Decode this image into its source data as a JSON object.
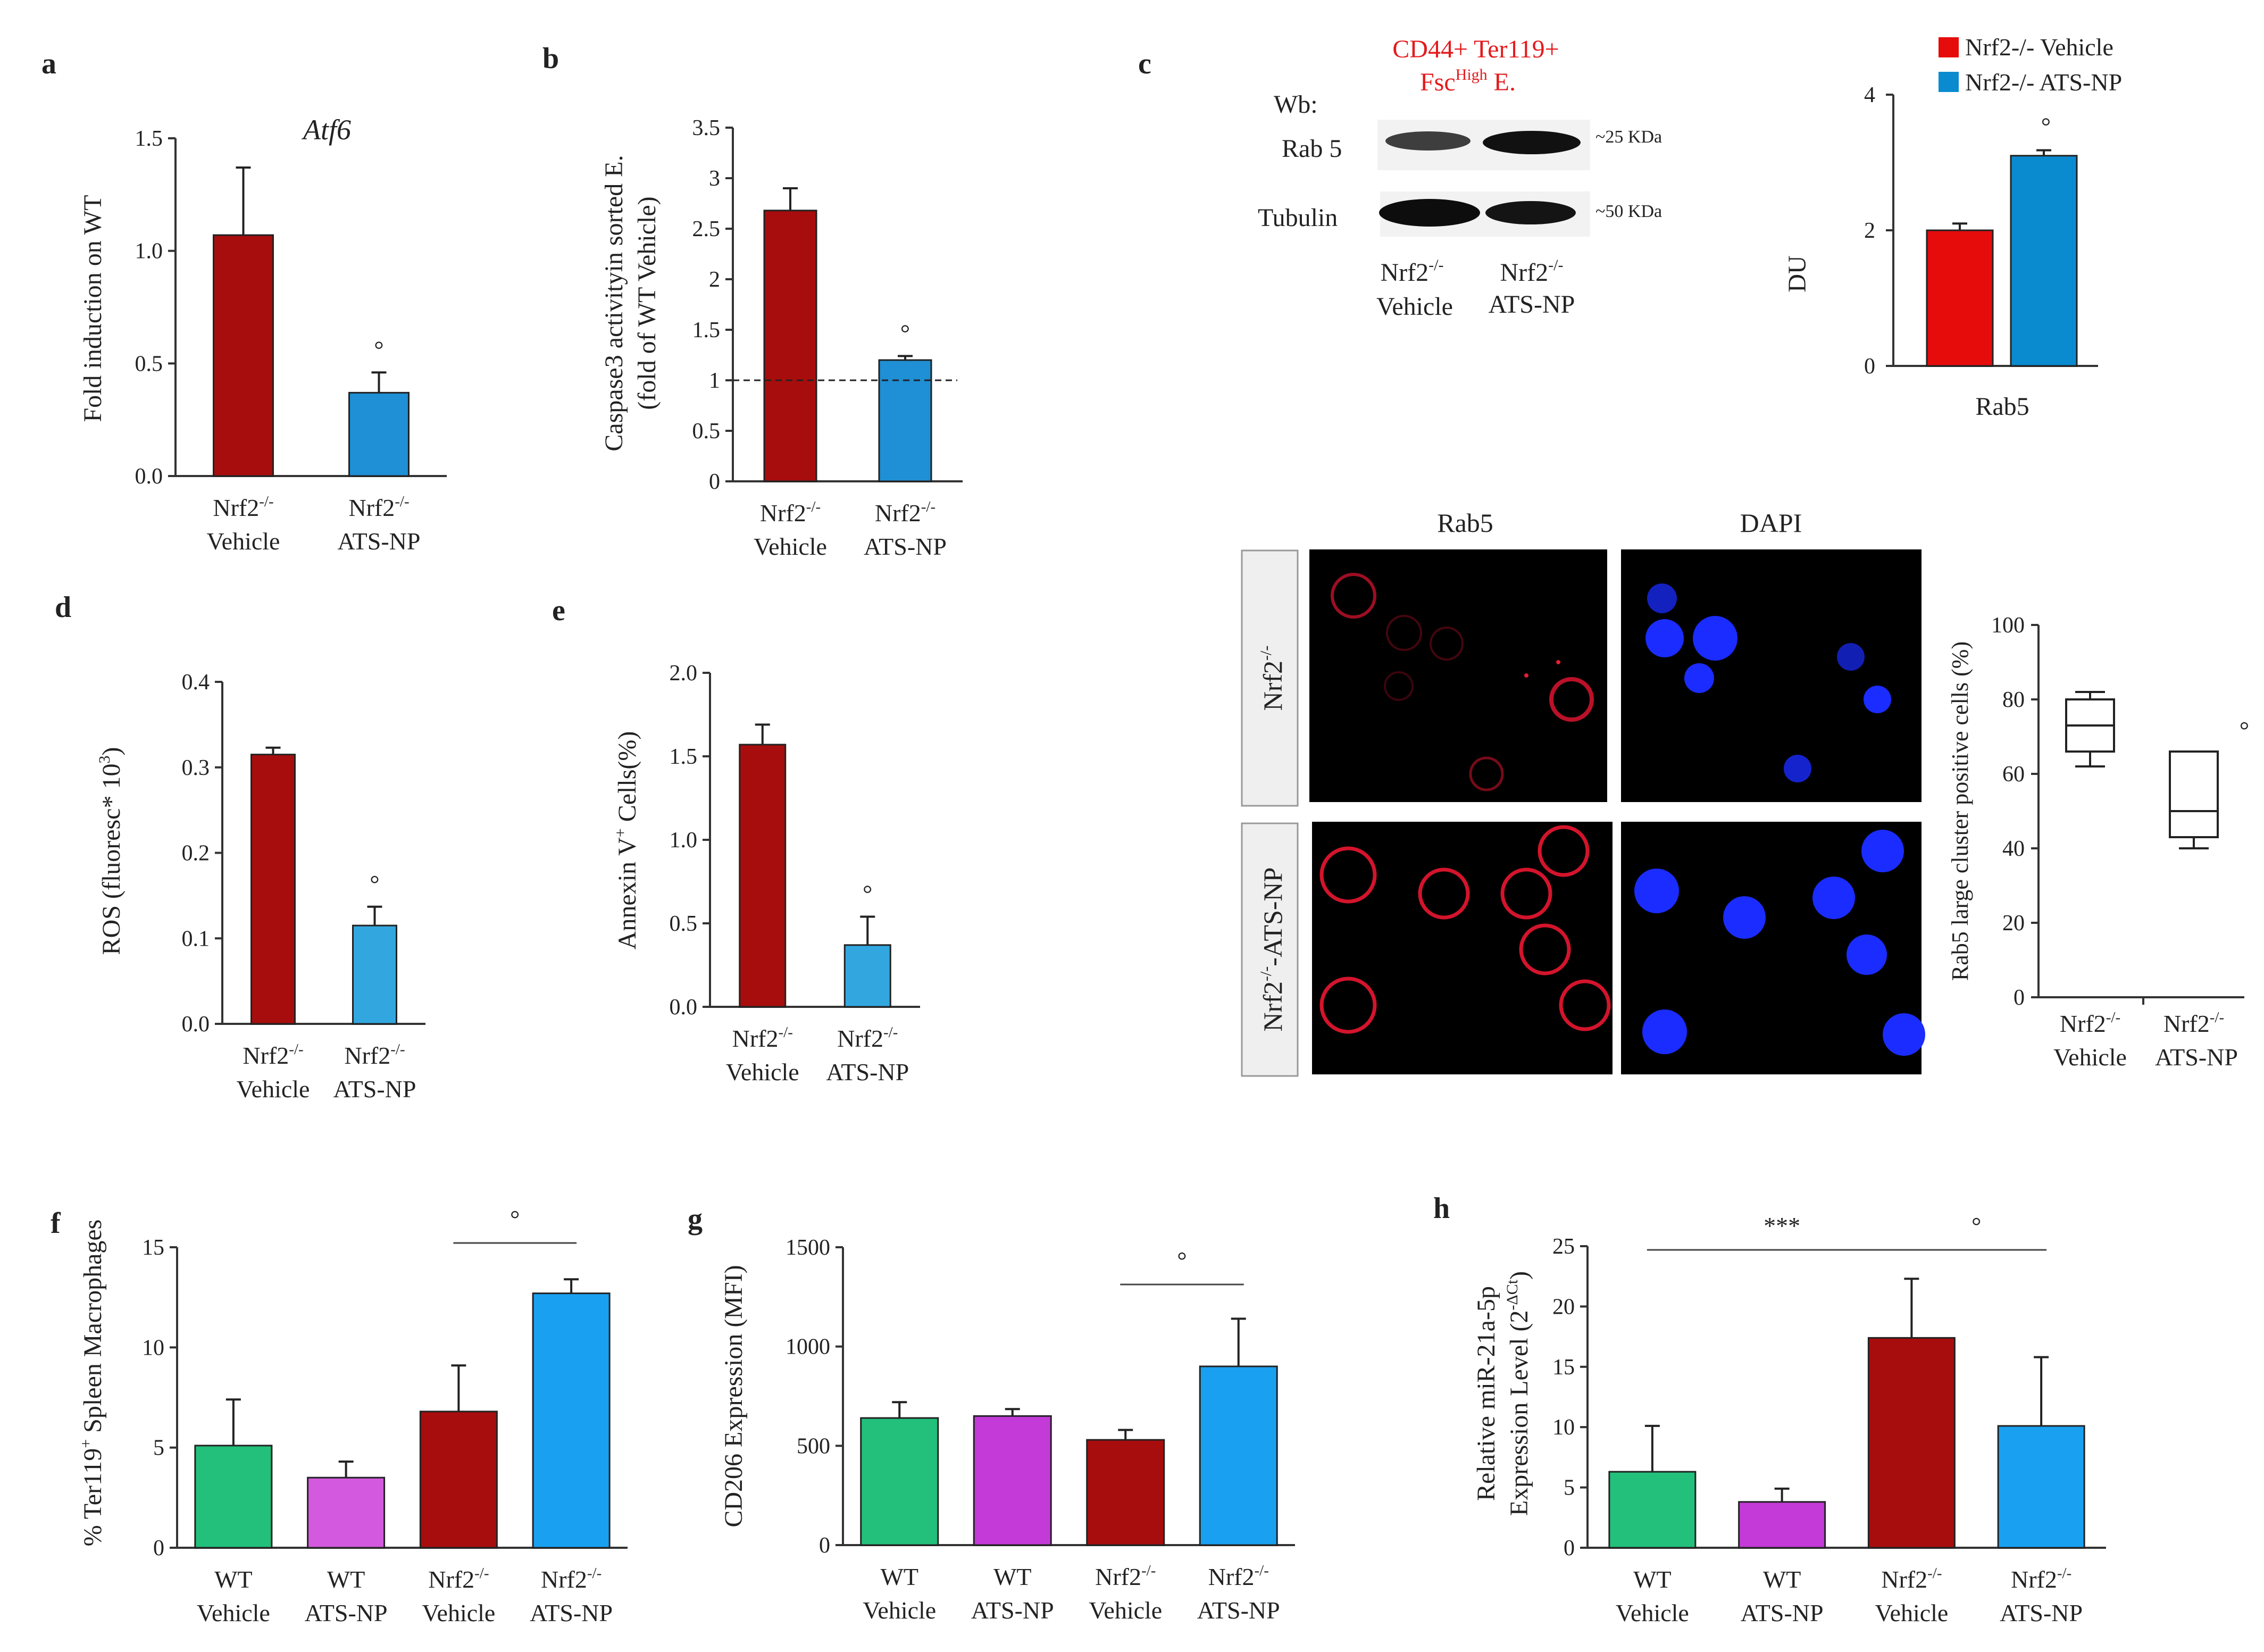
{
  "colors": {
    "dark_red": "#a80d0d",
    "blue": "#1f8fd6",
    "light_blue": "#32a7df",
    "green": "#22c07a",
    "magenta": "#c33ad8",
    "bright_red": "#e60c0c",
    "sky": "#1aa0f0",
    "accent_text": "#e41a1c"
  },
  "chart_data": [
    {
      "panel": "a",
      "type": "bar",
      "title": "Atf6",
      "ylabel": "Fold  induction on WT",
      "ylim": [
        0,
        1.5
      ],
      "yticks": [
        "0.0",
        "0.5",
        "1.0",
        "1.5"
      ],
      "categories": [
        {
          "line1": "Nrf2",
          "sup": "-/-",
          "line2": "Vehicle"
        },
        {
          "line1": "Nrf2",
          "sup": "-/-",
          "line2": "ATS-NP"
        }
      ],
      "values": [
        1.07,
        0.37
      ],
      "errors": [
        0.3,
        0.09
      ],
      "significance": [
        "",
        "°"
      ]
    },
    {
      "panel": "b",
      "type": "bar",
      "ylabel_line1": "Caspase3 activityin sorted E.",
      "ylabel_line2": "(fold of WT Vehicle)",
      "ylim": [
        0,
        3.5
      ],
      "yticks": [
        "0",
        "0.5",
        "1",
        "1.5",
        "2",
        "2.5",
        "3",
        "3.5"
      ],
      "reference_line": 1,
      "categories": [
        {
          "line1": "Nrf2",
          "sup": "-/-",
          "line2": "Vehicle"
        },
        {
          "line1": "Nrf2",
          "sup": "-/-",
          "line2": "ATS-NP"
        }
      ],
      "values": [
        2.68,
        1.2
      ],
      "errors": [
        0.22,
        0.04
      ],
      "significance": [
        "",
        "°"
      ]
    },
    {
      "panel": "c-bar",
      "type": "bar",
      "ylabel": "DU",
      "ylim": [
        0,
        4
      ],
      "yticks": [
        "0",
        "2",
        "4"
      ],
      "xlabel": "Rab5",
      "series": [
        {
          "name": "Nrf2-/- Vehicle",
          "values": [
            2.0
          ],
          "errors": [
            0.1
          ]
        },
        {
          "name": "Nrf2-/- ATS-NP",
          "values": [
            3.1
          ],
          "errors": [
            0.08
          ]
        }
      ],
      "significance": [
        "",
        "°"
      ]
    },
    {
      "panel": "c-box",
      "type": "box",
      "ylabel": "Rab5 large cluster positive cells (%)",
      "ylim": [
        0,
        100
      ],
      "yticks": [
        "0",
        "20",
        "40",
        "60",
        "80",
        "100"
      ],
      "categories": [
        {
          "line1": "Nrf2",
          "sup": "-/-",
          "line2": "Vehicle"
        },
        {
          "line1": "Nrf2",
          "sup": "-/-",
          "line2": "ATS-NP"
        }
      ],
      "boxes": [
        {
          "min": 62,
          "q1": 66,
          "median": 73,
          "q3": 80,
          "max": 82
        },
        {
          "min": 40,
          "q1": 43,
          "median": 50,
          "q3": 66,
          "max": 66
        }
      ],
      "significance": [
        "",
        "°"
      ]
    },
    {
      "panel": "d",
      "type": "bar",
      "ylabel": "ROS (fluoresc* 10",
      "ylabel_sup": "3",
      "ylim": [
        0,
        0.4
      ],
      "yticks": [
        "0.0",
        "0.1",
        "0.2",
        "0.3",
        "0.4"
      ],
      "categories": [
        {
          "line1": "Nrf2",
          "sup": "-/-",
          "line2": "Vehicle"
        },
        {
          "line1": "Nrf2",
          "sup": "-/-",
          "line2": "ATS-NP"
        }
      ],
      "values": [
        0.315,
        0.115
      ],
      "errors": [
        0.008,
        0.022
      ],
      "significance": [
        "",
        "°"
      ]
    },
    {
      "panel": "e",
      "type": "bar",
      "ylabel": "Annexin V",
      "ylabel_sup": "+",
      "ylabel_rest": " Cells(%)",
      "ylim": [
        0,
        2.0
      ],
      "yticks": [
        "0.0",
        "0.5",
        "1.0",
        "1.5",
        "2.0"
      ],
      "categories": [
        {
          "line1": "Nrf2",
          "sup": "-/-",
          "line2": "Vehicle"
        },
        {
          "line1": "Nrf2",
          "sup": "-/-",
          "line2": "ATS-NP"
        }
      ],
      "values": [
        1.57,
        0.37
      ],
      "errors": [
        0.12,
        0.17
      ],
      "significance": [
        "",
        "°"
      ]
    },
    {
      "panel": "f",
      "type": "bar",
      "ylabel": "% Ter119",
      "ylabel_sup": "+",
      "ylabel_rest": " Spleen Macrophages",
      "ylim": [
        0,
        15
      ],
      "yticks": [
        "0",
        "5",
        "10",
        "15"
      ],
      "categories": [
        {
          "line1": "WT",
          "sup": "",
          "line2": "Vehicle"
        },
        {
          "line1": "WT",
          "sup": "",
          "line2": "ATS-NP"
        },
        {
          "line1": "Nrf2",
          "sup": "-/-",
          "line2": "Vehicle"
        },
        {
          "line1": "Nrf2",
          "sup": "-/-",
          "line2": "ATS-NP"
        }
      ],
      "values": [
        5.1,
        3.5,
        6.8,
        12.7
      ],
      "errors": [
        2.3,
        0.8,
        2.3,
        0.7
      ],
      "brackets": [
        {
          "from": 2,
          "to": 3,
          "label": "°"
        }
      ]
    },
    {
      "panel": "g",
      "type": "bar",
      "ylabel": "CD206 Expression (MFI)",
      "ylim": [
        0,
        1500
      ],
      "yticks": [
        "0",
        "500",
        "1000",
        "1500"
      ],
      "categories": [
        {
          "line1": "WT",
          "sup": "",
          "line2": "Vehicle"
        },
        {
          "line1": "WT",
          "sup": "",
          "line2": "ATS-NP"
        },
        {
          "line1": "Nrf2",
          "sup": "-/-",
          "line2": "Vehicle"
        },
        {
          "line1": "Nrf2",
          "sup": "-/-",
          "line2": "ATS-NP"
        }
      ],
      "values": [
        640,
        650,
        530,
        900
      ],
      "errors": [
        80,
        35,
        50,
        240
      ],
      "brackets": [
        {
          "from": 2,
          "to": 3,
          "label": "°"
        }
      ]
    },
    {
      "panel": "h",
      "type": "bar",
      "ylabel_line1": "Relative miR-21a-5p",
      "ylabel_line2": "Expression Level (2",
      "ylabel_line2_sup": "-ΔCt",
      "ylabel_line2_end": ")",
      "ylim": [
        0,
        25
      ],
      "yticks": [
        "0",
        "5",
        "10",
        "15",
        "20",
        "25"
      ],
      "categories": [
        {
          "line1": "WT",
          "sup": "",
          "line2": "Vehicle"
        },
        {
          "line1": "WT",
          "sup": "",
          "line2": "ATS-NP"
        },
        {
          "line1": "Nrf2",
          "sup": "-/-",
          "line2": "Vehicle"
        },
        {
          "line1": "Nrf2",
          "sup": "-/-",
          "line2": "ATS-NP"
        }
      ],
      "values": [
        6.3,
        3.8,
        17.4,
        10.1
      ],
      "errors": [
        3.8,
        1.1,
        4.9,
        5.7
      ],
      "brackets": [
        {
          "from": 0,
          "to": 2,
          "label": "***"
        },
        {
          "from": 2,
          "to": 3,
          "label": "°"
        }
      ]
    }
  ],
  "panel_labels": [
    "a",
    "b",
    "c",
    "d",
    "e",
    "f",
    "g",
    "h"
  ],
  "western": {
    "title_line1": "CD44+ Ter119+",
    "title_line2_a": "Fsc",
    "title_line2_sup": "High",
    "title_line2_b": " E.",
    "wb_label": "Wb:",
    "rows": [
      {
        "name": "Rab 5",
        "kda": "~25 KDa"
      },
      {
        "name": "Tubulin",
        "kda": "~50 KDa"
      }
    ],
    "lanes": [
      {
        "line1": "Nrf2",
        "sup": "-/-",
        "line2": "Vehicle"
      },
      {
        "line1": "Nrf2",
        "sup": "-/-",
        "line2": "ATS-NP"
      }
    ]
  },
  "legend": [
    "Nrf2-/- Vehicle",
    "Nrf2-/- ATS-NP"
  ],
  "microscopy": {
    "col_labels": [
      "Rab5",
      "DAPI"
    ],
    "row_labels": [
      {
        "text": "Nrf2",
        "sup": "-/-",
        "rest": ""
      },
      {
        "text": "Nrf2",
        "sup": "-/-",
        "rest": "-ATS-NP"
      }
    ]
  }
}
